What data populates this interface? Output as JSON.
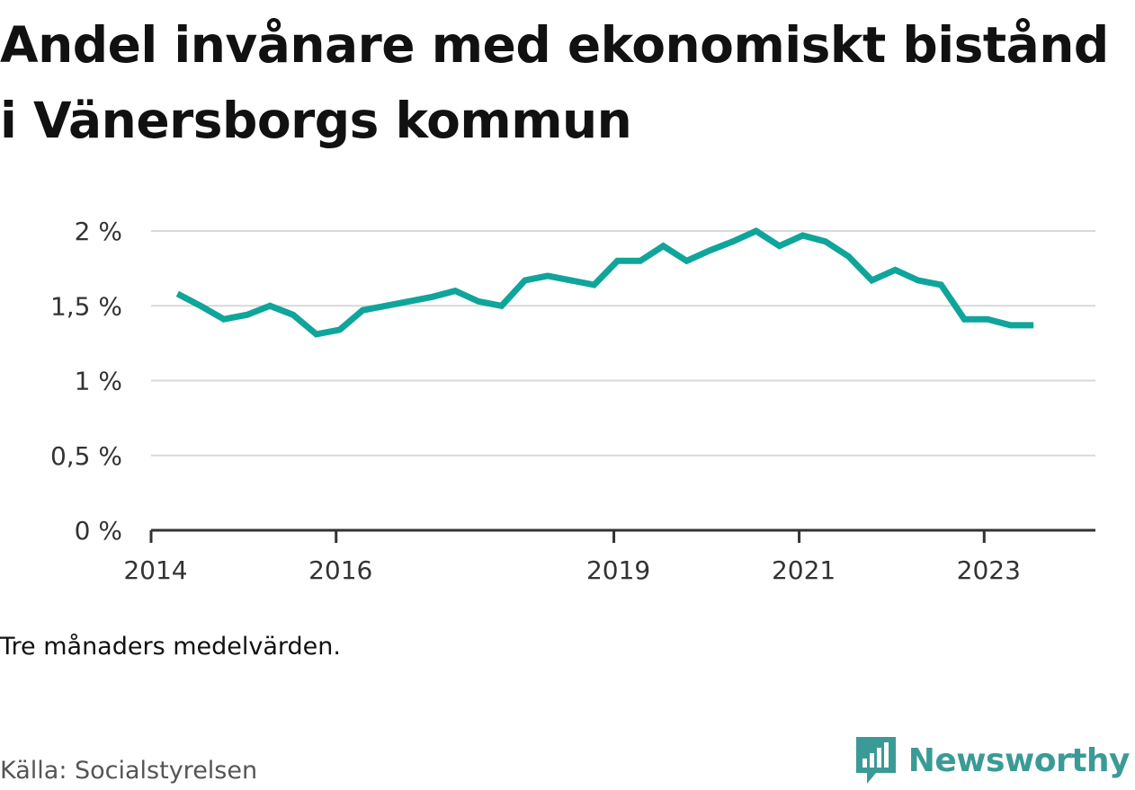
{
  "title": "Andel invånare med ekonomiskt bistånd i Vänersborgs kommun",
  "note": "Tre månaders medelvärden.",
  "source": "Källa: Socialstyrelsen",
  "brand": {
    "name": "Newsworthy",
    "color": "#3a9b96",
    "icon": "newsworthy-logo-icon"
  },
  "chart_data": {
    "type": "line",
    "title": "Andel invånare med ekonomiskt bistånd i Vänersborgs kommun",
    "xlabel": "",
    "ylabel": "",
    "line_color": "#0fa59b",
    "grid": true,
    "legend": "none",
    "ylim": [
      0,
      2
    ],
    "yticks": [
      {
        "value": 0,
        "label": "0 %"
      },
      {
        "value": 0.5,
        "label": "0,5 %"
      },
      {
        "value": 1,
        "label": "1 %"
      },
      {
        "value": 1.5,
        "label": "1,5 %"
      },
      {
        "value": 2,
        "label": "2 %"
      }
    ],
    "xlim": [
      "2014-01-01",
      "2024-03-15"
    ],
    "xticks": [
      {
        "value": "2014-01-01",
        "label": "2014"
      },
      {
        "value": "2016-01-01",
        "label": "2016"
      },
      {
        "value": "2019-01-01",
        "label": "2019"
      },
      {
        "value": "2021-01-01",
        "label": "2021"
      },
      {
        "value": "2023-01-01",
        "label": "2023"
      }
    ],
    "series": [
      {
        "values": [
          {
            "x": "2014-04-15",
            "y": 1.58
          },
          {
            "x": "2014-07-15",
            "y": 1.5
          },
          {
            "x": "2014-10-15",
            "y": 1.41
          },
          {
            "x": "2015-01-15",
            "y": 1.44
          },
          {
            "x": "2015-04-15",
            "y": 1.5
          },
          {
            "x": "2015-07-15",
            "y": 1.44
          },
          {
            "x": "2015-10-15",
            "y": 1.31
          },
          {
            "x": "2016-01-15",
            "y": 1.34
          },
          {
            "x": "2016-04-15",
            "y": 1.47
          },
          {
            "x": "2016-07-15",
            "y": 1.5
          },
          {
            "x": "2016-10-15",
            "y": 1.53
          },
          {
            "x": "2017-01-15",
            "y": 1.56
          },
          {
            "x": "2017-04-15",
            "y": 1.6
          },
          {
            "x": "2017-07-15",
            "y": 1.53
          },
          {
            "x": "2017-10-15",
            "y": 1.5
          },
          {
            "x": "2018-01-15",
            "y": 1.67
          },
          {
            "x": "2018-04-15",
            "y": 1.7
          },
          {
            "x": "2018-07-15",
            "y": 1.67
          },
          {
            "x": "2018-10-15",
            "y": 1.64
          },
          {
            "x": "2019-01-15",
            "y": 1.8
          },
          {
            "x": "2019-04-15",
            "y": 1.8
          },
          {
            "x": "2019-07-15",
            "y": 1.9
          },
          {
            "x": "2019-10-15",
            "y": 1.8
          },
          {
            "x": "2020-01-15",
            "y": 1.87
          },
          {
            "x": "2020-04-15",
            "y": 1.93
          },
          {
            "x": "2020-07-15",
            "y": 2.0
          },
          {
            "x": "2020-10-15",
            "y": 1.9
          },
          {
            "x": "2021-01-15",
            "y": 1.97
          },
          {
            "x": "2021-04-15",
            "y": 1.93
          },
          {
            "x": "2021-07-15",
            "y": 1.83
          },
          {
            "x": "2021-10-15",
            "y": 1.67
          },
          {
            "x": "2022-01-15",
            "y": 1.74
          },
          {
            "x": "2022-04-15",
            "y": 1.67
          },
          {
            "x": "2022-07-15",
            "y": 1.64
          },
          {
            "x": "2022-10-15",
            "y": 1.41
          },
          {
            "x": "2023-01-15",
            "y": 1.41
          },
          {
            "x": "2023-04-15",
            "y": 1.37
          },
          {
            "x": "2023-07-15",
            "y": 1.37
          }
        ]
      }
    ]
  }
}
